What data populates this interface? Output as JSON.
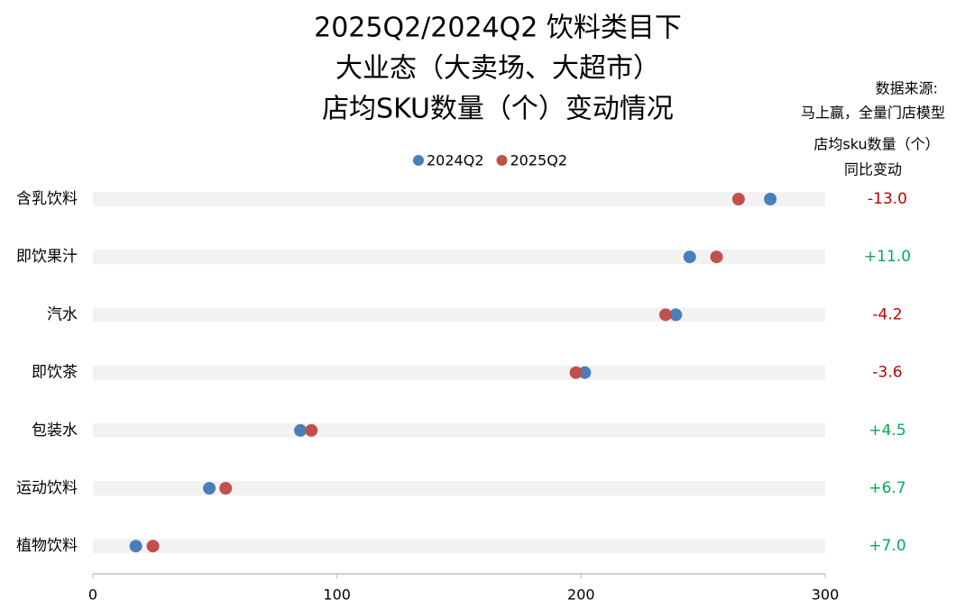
{
  "chart_data": {
    "type": "dot",
    "title": [
      "2025Q2/2024Q2 饮料类目下",
      "大业态（大卖场、大超市）",
      "店均SKU数量（个）变动情况"
    ],
    "source": [
      "数据来源:",
      "马上赢，全量门店模型"
    ],
    "categories": [
      "含乳饮料",
      "即饮果汁",
      "汽水",
      "即饮茶",
      "包装水",
      "运动饮料",
      "植物饮料"
    ],
    "series": [
      {
        "name": "2024Q2",
        "color": "#4a7ebb",
        "values": [
          277.5,
          244.5,
          238.8,
          201.5,
          85.0,
          47.7,
          17.6
        ]
      },
      {
        "name": "2025Q2",
        "color": "#c0504d",
        "values": [
          264.5,
          255.5,
          234.6,
          197.9,
          89.5,
          54.4,
          24.6
        ]
      }
    ],
    "change": {
      "header": [
        "店均sku数量（个）",
        "同比变动"
      ],
      "values": [
        -13.0,
        11.0,
        -4.2,
        -3.6,
        4.5,
        6.7,
        7.0
      ],
      "value_labels": [
        "-13.0",
        "+11.0",
        "-4.2",
        "-3.6",
        "+4.5",
        "+6.7",
        "+7.0"
      ],
      "positive_color": "#00b050",
      "negative_color": "#c00000"
    },
    "xlim": [
      0,
      300
    ],
    "xticks": [
      0,
      100,
      200,
      300
    ],
    "grid": false
  }
}
